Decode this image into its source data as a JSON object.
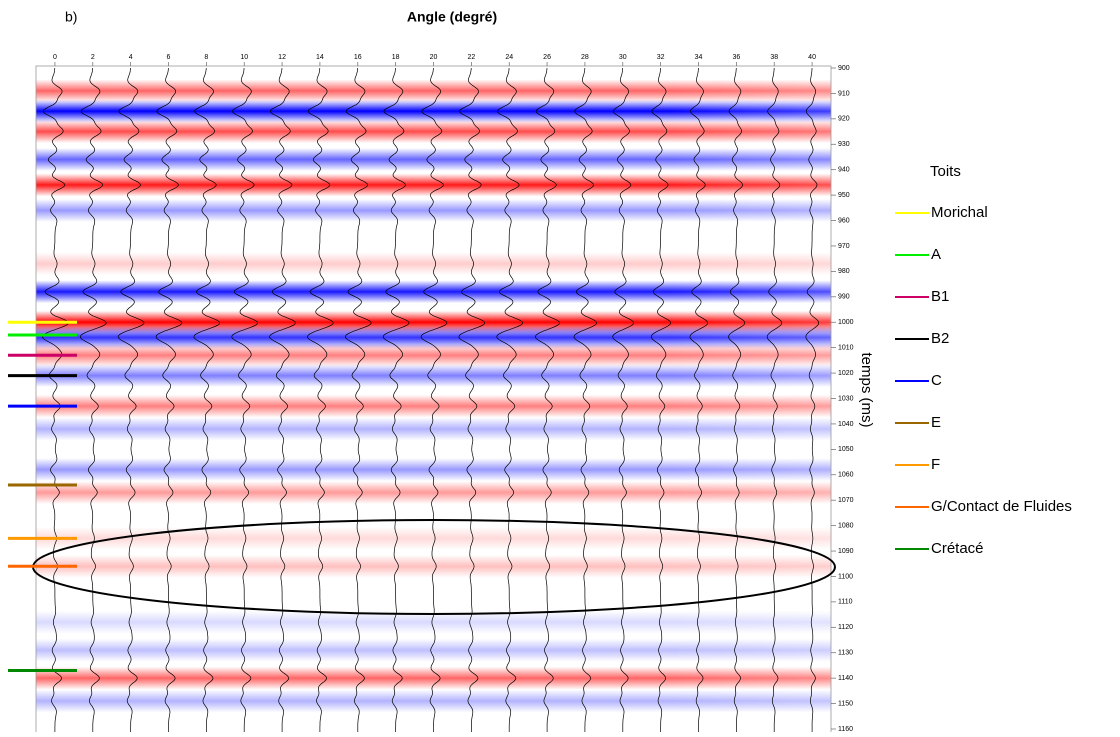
{
  "chart_data": {
    "type": "seismic-gather",
    "panel_label": "b)",
    "title": "Angle (degré)",
    "y_label": "temps (ms)",
    "xlim": [
      -1,
      41
    ],
    "xticks": [
      0,
      2,
      4,
      6,
      8,
      10,
      12,
      14,
      16,
      18,
      20,
      22,
      24,
      26,
      28,
      30,
      32,
      34,
      36,
      38,
      40
    ],
    "ylim": [
      900,
      1160
    ],
    "yticks": [
      900,
      910,
      920,
      930,
      940,
      950,
      960,
      970,
      980,
      990,
      1000,
      1010,
      1020,
      1030,
      1040,
      1050,
      1060,
      1070,
      1080,
      1090,
      1100,
      1110,
      1120,
      1130,
      1140,
      1150,
      1160
    ],
    "positive_color": "#ff0000",
    "negative_color": "#0000ff",
    "reflectors": [
      {
        "time": 909,
        "amp": 0.6
      },
      {
        "time": 917,
        "amp": -1
      },
      {
        "time": 925,
        "amp": 0.7
      },
      {
        "time": 936,
        "amp": -0.6
      },
      {
        "time": 946,
        "amp": 0.9
      },
      {
        "time": 956,
        "amp": -0.4
      },
      {
        "time": 977,
        "amp": 0.2
      },
      {
        "time": 988,
        "amp": -0.9
      },
      {
        "time": 1000,
        "amp": 1
      },
      {
        "time": 1006,
        "amp": -0.8
      },
      {
        "time": 1013,
        "amp": 0.5
      },
      {
        "time": 1021,
        "amp": -0.5
      },
      {
        "time": 1033,
        "amp": 0.5
      },
      {
        "time": 1042,
        "amp": -0.3
      },
      {
        "time": 1058,
        "amp": -0.4
      },
      {
        "time": 1067,
        "amp": 0.4
      },
      {
        "time": 1085,
        "amp": 0.15
      },
      {
        "time": 1096,
        "amp": 0.25
      },
      {
        "time": 1118,
        "amp": -0.15
      },
      {
        "time": 1129,
        "amp": -0.25
      },
      {
        "time": 1140,
        "amp": 0.6
      },
      {
        "time": 1149,
        "amp": -0.3
      }
    ],
    "legend_title": "Toits",
    "series": [
      {
        "name": "Morichal",
        "color": "#ffff00",
        "time": 1000
      },
      {
        "name": "A",
        "color": "#00ee00",
        "time": 1005
      },
      {
        "name": "B1",
        "color": "#cc0066",
        "time": 1013
      },
      {
        "name": "B2",
        "color": "#000000",
        "time": 1021
      },
      {
        "name": "C",
        "color": "#0000ff",
        "time": 1033
      },
      {
        "name": "E",
        "color": "#996600",
        "time": 1064
      },
      {
        "name": "F",
        "color": "#ff9900",
        "time": 1085
      },
      {
        "name": "G/Contact de Fluides",
        "color": "#ff6600",
        "time": 1096
      },
      {
        "name": "Crétacé",
        "color": "#008800",
        "time": 1137
      }
    ]
  }
}
